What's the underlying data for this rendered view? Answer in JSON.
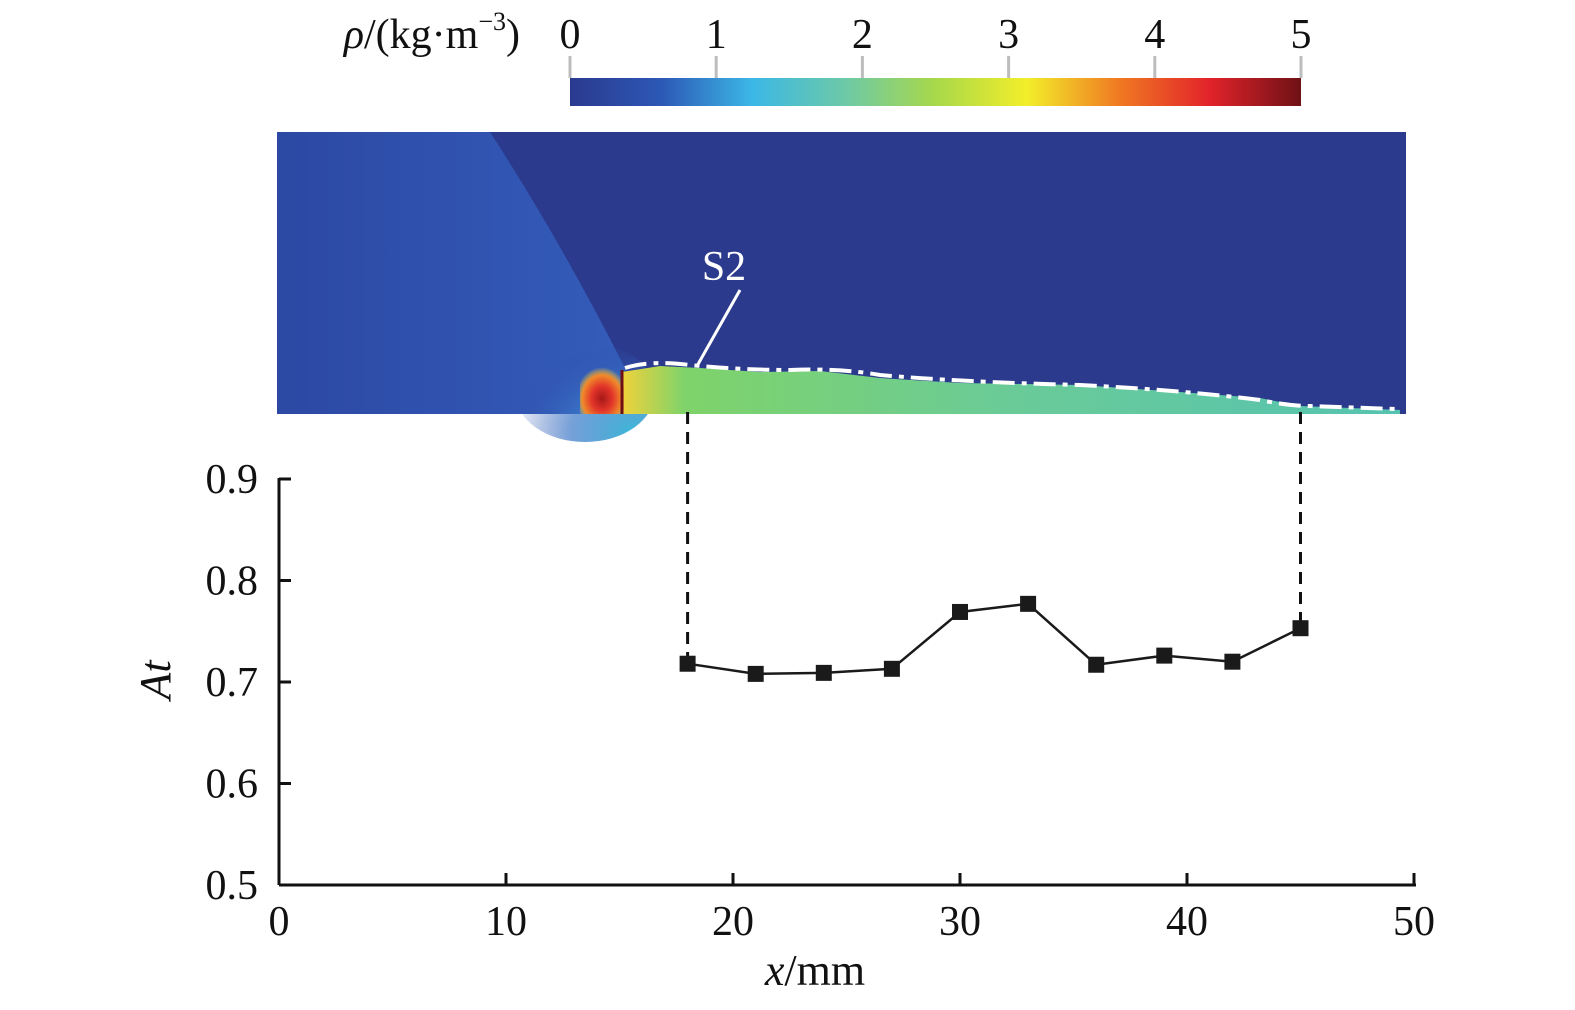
{
  "colorbar": {
    "label_symbol": "ρ",
    "label_unit": "/(kg·m",
    "label_exp": "−3",
    "label_close": ")",
    "min": 0,
    "max": 5,
    "ticks": [
      0,
      1,
      2,
      3,
      4,
      5
    ],
    "tick_labels": [
      "0",
      "1",
      "2",
      "3",
      "4",
      "5"
    ],
    "colors": [
      "#2b3a8f",
      "#2c58b5",
      "#3cb8e6",
      "#6cc9a8",
      "#a8d84a",
      "#f2ee2a",
      "#f07a22",
      "#e2232a",
      "#6e1116"
    ]
  },
  "contour": {
    "annotation": "S2",
    "field_colors": {
      "background": "#2b3a8c",
      "shock_region": "#3050b0",
      "layer": "#5ec98f",
      "hot_spot": "#d4251e"
    }
  },
  "chart_data": {
    "type": "line",
    "xlabel_var": "x",
    "xlabel_unit": "/mm",
    "ylabel": "At",
    "xlim": [
      0,
      50
    ],
    "ylim": [
      0.5,
      0.9
    ],
    "xticks": [
      0,
      10,
      20,
      30,
      40,
      50
    ],
    "xtick_labels": [
      "0",
      "10",
      "20",
      "30",
      "40",
      "50"
    ],
    "yticks": [
      0.5,
      0.6,
      0.7,
      0.8,
      0.9
    ],
    "ytick_labels": [
      "0.5",
      "0.6",
      "0.7",
      "0.8",
      "0.9"
    ],
    "grid": false,
    "series": [
      {
        "x": [
          18,
          21,
          24,
          27,
          30,
          33,
          36,
          39,
          42,
          45
        ],
        "y": [
          0.718,
          0.708,
          0.709,
          0.713,
          0.769,
          0.777,
          0.717,
          0.726,
          0.72,
          0.753
        ],
        "color": "#1a1a1a",
        "marker": "square"
      }
    ],
    "dashed_guides_x": [
      18,
      45
    ]
  }
}
